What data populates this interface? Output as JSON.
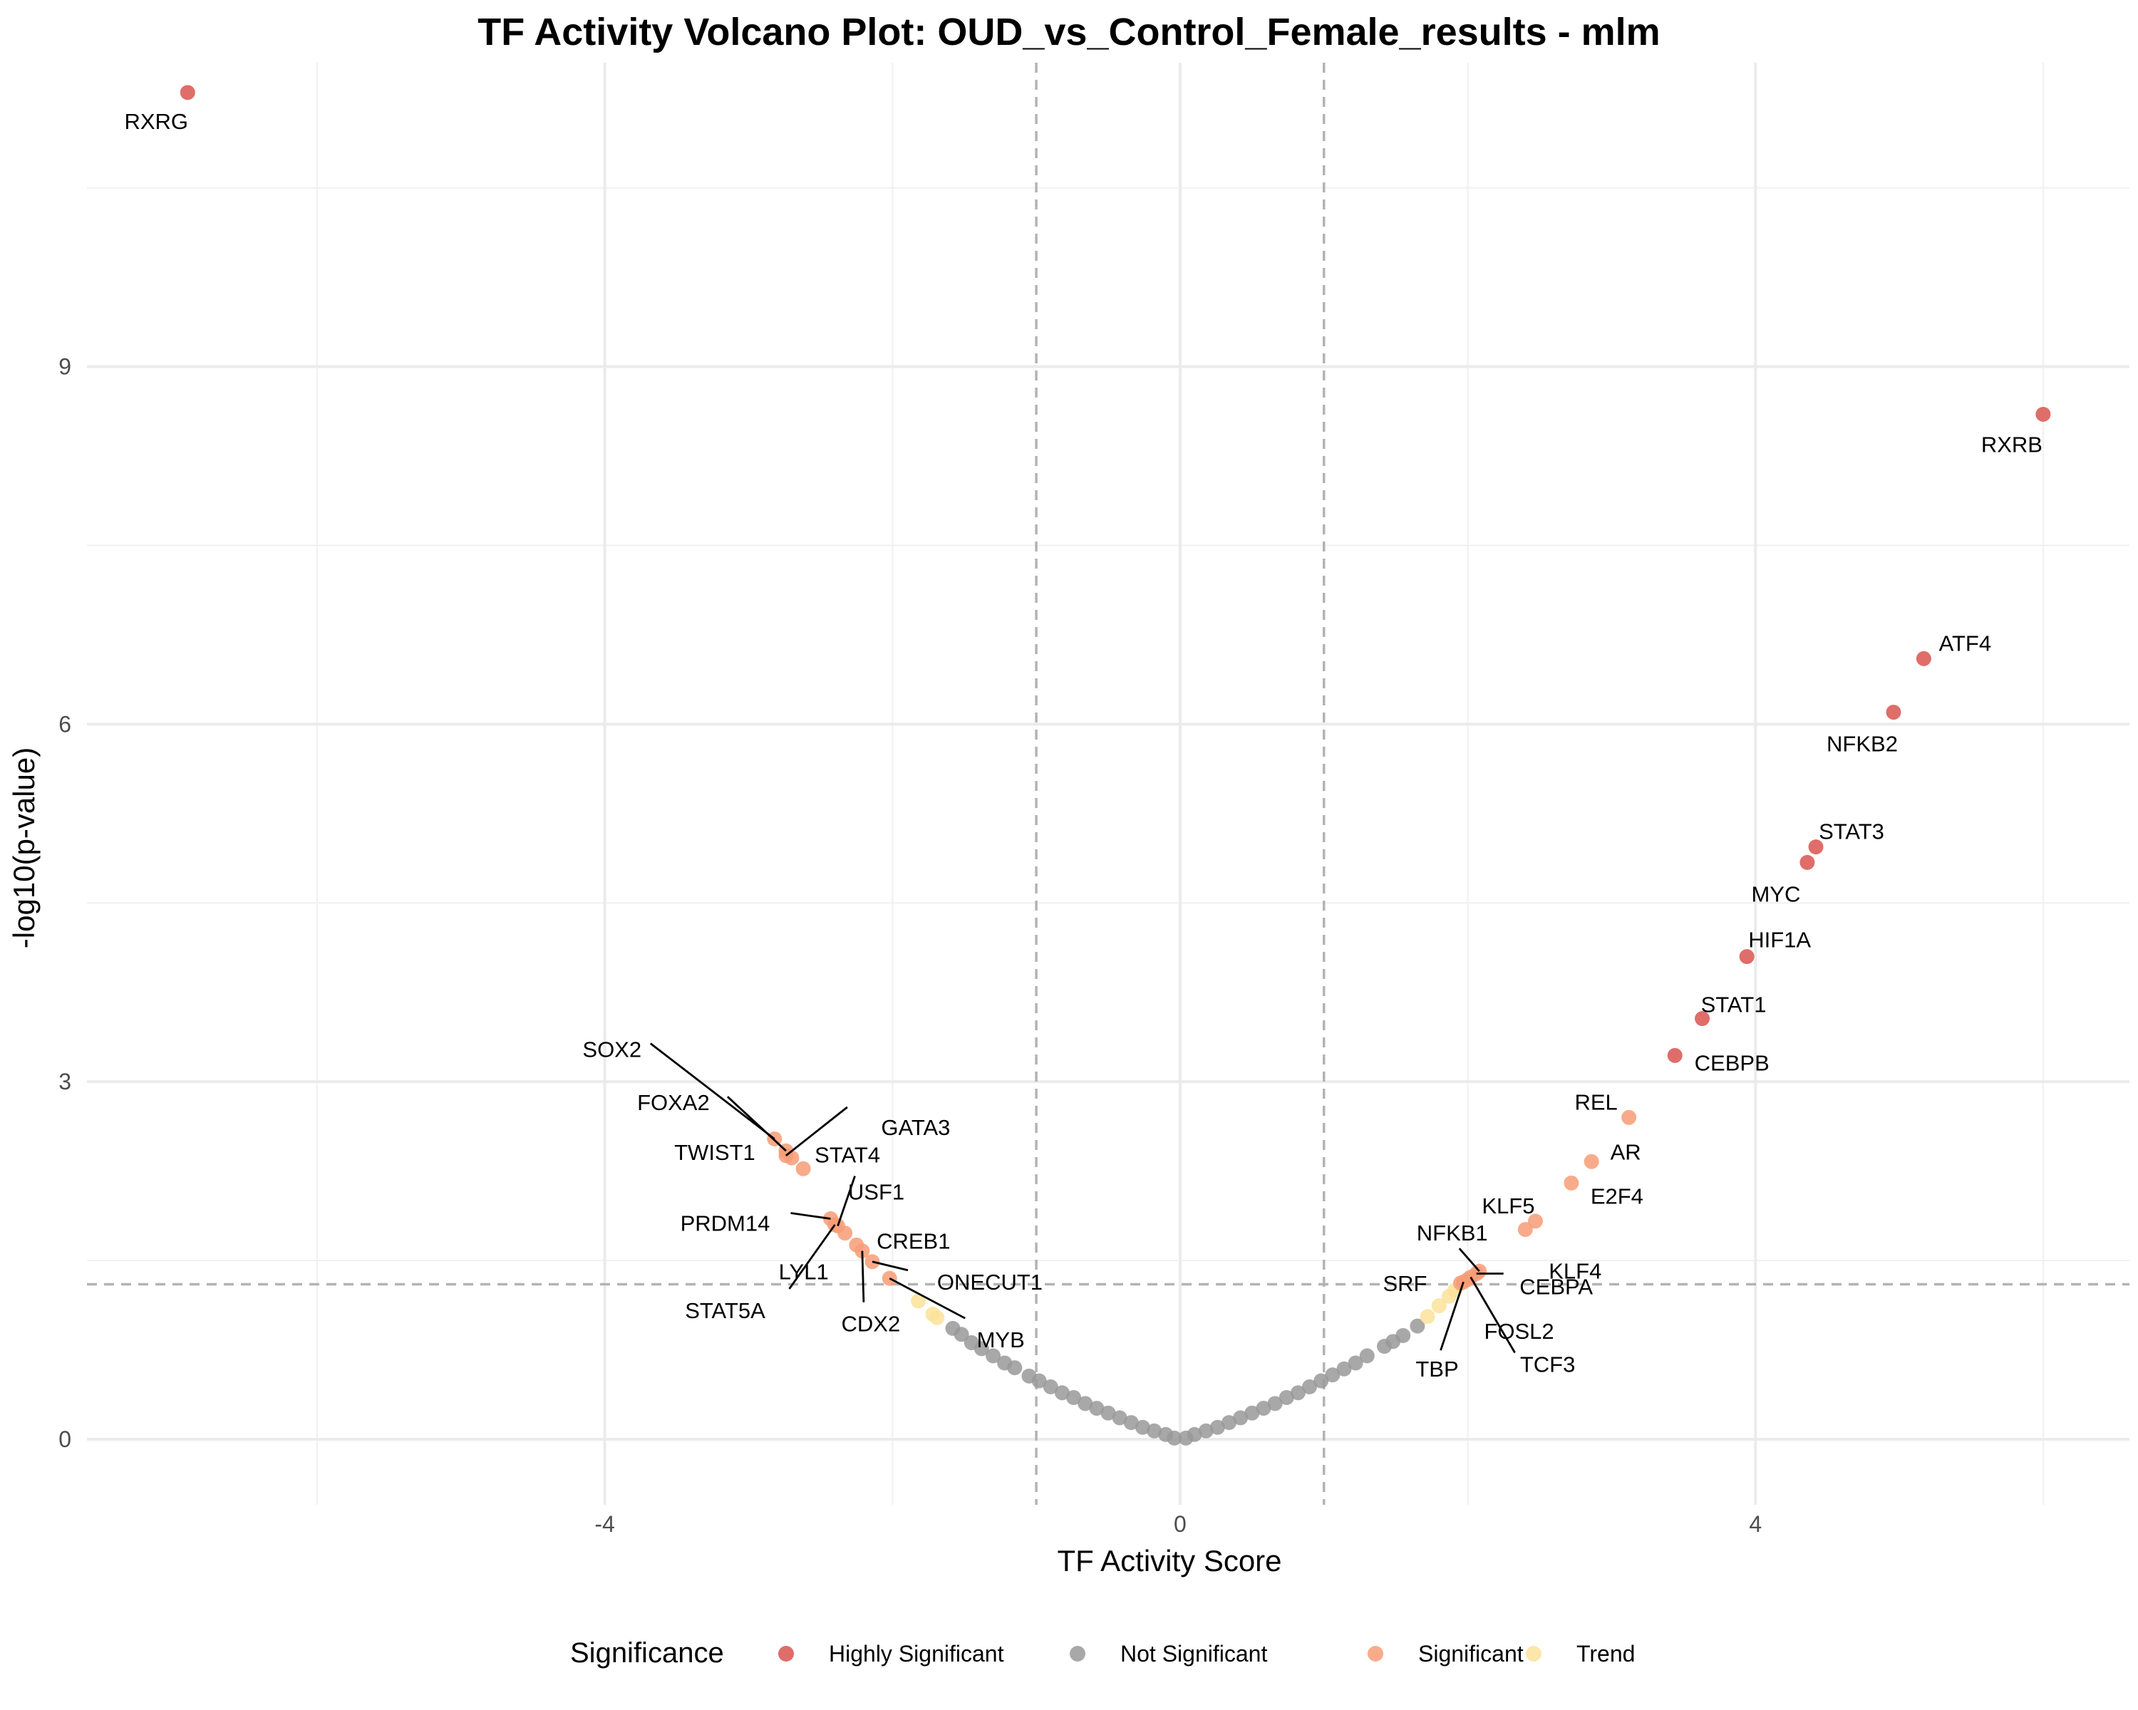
{
  "chart_data": {
    "type": "scatter",
    "title": "TF Activity Volcano Plot: OUD_vs_Control_Female_results - mlm",
    "xlabel": "TF Activity Score",
    "ylabel": "-log10(p-value)",
    "xlim": [
      -7.6,
      6.6
    ],
    "ylim": [
      -0.55,
      11.55
    ],
    "x_ticks": [
      -4,
      0,
      4
    ],
    "y_ticks": [
      0,
      3,
      6,
      9
    ],
    "x_minor_ticks": [
      -6,
      -2,
      2,
      6
    ],
    "y_minor_ticks": [
      1.5,
      4.5,
      7.5,
      10.5
    ],
    "grid": true,
    "thresholds": {
      "x": [
        -1,
        1
      ],
      "y": 1.3
    },
    "legend": {
      "title": "Significance",
      "position": "bottom",
      "entries": [
        {
          "name": "Highly Significant",
          "color": "#D9534F"
        },
        {
          "name": "Not Significant",
          "color": "#999999"
        },
        {
          "name": "Significant",
          "color": "#F79C76"
        },
        {
          "name": "Trend",
          "color": "#FBE29A"
        }
      ]
    },
    "colors": {
      "Highly Significant": "#D9534F",
      "Not Significant": "#999999",
      "Significant": "#F79C76",
      "Trend": "#FBE29A"
    },
    "labeled_points": [
      {
        "name": "RXRG",
        "x": -6.9,
        "y": 11.3,
        "group": "Highly Significant"
      },
      {
        "name": "RXRB",
        "x": 6.0,
        "y": 8.6,
        "group": "Highly Significant"
      },
      {
        "name": "ATF4",
        "x": 5.17,
        "y": 6.55,
        "group": "Highly Significant"
      },
      {
        "name": "NFKB2",
        "x": 4.96,
        "y": 6.1,
        "group": "Highly Significant"
      },
      {
        "name": "STAT3",
        "x": 4.42,
        "y": 4.97,
        "group": "Highly Significant"
      },
      {
        "name": "MYC",
        "x": 4.36,
        "y": 4.84,
        "group": "Highly Significant"
      },
      {
        "name": "HIF1A",
        "x": 3.94,
        "y": 4.05,
        "group": "Highly Significant"
      },
      {
        "name": "STAT1",
        "x": 3.63,
        "y": 3.53,
        "group": "Highly Significant"
      },
      {
        "name": "CEBPB",
        "x": 3.44,
        "y": 3.22,
        "group": "Highly Significant"
      },
      {
        "name": "REL",
        "x": 3.12,
        "y": 2.7,
        "group": "Significant"
      },
      {
        "name": "AR",
        "x": 2.86,
        "y": 2.33,
        "group": "Significant"
      },
      {
        "name": "E2F4",
        "x": 2.72,
        "y": 2.15,
        "group": "Significant"
      },
      {
        "name": "KLF5",
        "x": 2.47,
        "y": 1.83,
        "group": "Significant"
      },
      {
        "name": "KLF4",
        "x": 2.4,
        "y": 1.76,
        "group": "Significant"
      },
      {
        "name": "NFKB1",
        "x": 2.08,
        "y": 1.41,
        "group": "Significant"
      },
      {
        "name": "CEBPA",
        "x": 2.06,
        "y": 1.39,
        "group": "Significant"
      },
      {
        "name": "TCF3",
        "x": 2.02,
        "y": 1.36,
        "group": "Significant"
      },
      {
        "name": "FOSL2",
        "x": 2.0,
        "y": 1.34,
        "group": "Significant"
      },
      {
        "name": "TBP",
        "x": 1.97,
        "y": 1.32,
        "group": "Significant"
      },
      {
        "name": "SRF",
        "x": 1.95,
        "y": 1.31,
        "group": "Significant"
      },
      {
        "name": "SOX2",
        "x": -2.82,
        "y": 2.52,
        "group": "Significant"
      },
      {
        "name": "FOXA2",
        "x": -2.74,
        "y": 2.42,
        "group": "Significant"
      },
      {
        "name": "TWIST1",
        "x": -2.7,
        "y": 2.36,
        "group": "Significant"
      },
      {
        "name": "STAT4",
        "x": -2.62,
        "y": 2.27,
        "group": "Significant"
      },
      {
        "name": "GATA3",
        "x": -2.74,
        "y": 2.38,
        "group": "Significant"
      },
      {
        "name": "PRDM14",
        "x": -2.43,
        "y": 1.85,
        "group": "Significant"
      },
      {
        "name": "USF1",
        "x": -2.38,
        "y": 1.79,
        "group": "Significant"
      },
      {
        "name": "LYL1",
        "x": -2.33,
        "y": 1.73,
        "group": "Significant"
      },
      {
        "name": "STAT5A",
        "x": -2.4,
        "y": 1.8,
        "group": "Significant"
      },
      {
        "name": "CREB1",
        "x": -2.25,
        "y": 1.63,
        "group": "Significant"
      },
      {
        "name": "CDX2",
        "x": -2.21,
        "y": 1.58,
        "group": "Significant"
      },
      {
        "name": "ONECUT1",
        "x": -2.14,
        "y": 1.49,
        "group": "Significant"
      },
      {
        "name": "MYB",
        "x": -2.02,
        "y": 1.35,
        "group": "Significant"
      }
    ],
    "unlabeled_points": [
      {
        "x": -1.82,
        "y": 1.16,
        "group": "Trend"
      },
      {
        "x": -1.72,
        "y": 1.05,
        "group": "Trend"
      },
      {
        "x": -1.69,
        "y": 1.02,
        "group": "Trend"
      },
      {
        "x": -1.58,
        "y": 0.93,
        "group": "Not Significant"
      },
      {
        "x": -1.52,
        "y": 0.88,
        "group": "Not Significant"
      },
      {
        "x": -1.45,
        "y": 0.81,
        "group": "Not Significant"
      },
      {
        "x": -1.38,
        "y": 0.76,
        "group": "Not Significant"
      },
      {
        "x": -1.3,
        "y": 0.7,
        "group": "Not Significant"
      },
      {
        "x": -1.22,
        "y": 0.64,
        "group": "Not Significant"
      },
      {
        "x": -1.15,
        "y": 0.6,
        "group": "Not Significant"
      },
      {
        "x": -1.05,
        "y": 0.53,
        "group": "Not Significant"
      },
      {
        "x": -0.98,
        "y": 0.49,
        "group": "Not Significant"
      },
      {
        "x": -0.9,
        "y": 0.44,
        "group": "Not Significant"
      },
      {
        "x": -0.82,
        "y": 0.39,
        "group": "Not Significant"
      },
      {
        "x": -0.74,
        "y": 0.35,
        "group": "Not Significant"
      },
      {
        "x": -0.66,
        "y": 0.3,
        "group": "Not Significant"
      },
      {
        "x": -0.58,
        "y": 0.26,
        "group": "Not Significant"
      },
      {
        "x": -0.5,
        "y": 0.22,
        "group": "Not Significant"
      },
      {
        "x": -0.42,
        "y": 0.18,
        "group": "Not Significant"
      },
      {
        "x": -0.34,
        "y": 0.14,
        "group": "Not Significant"
      },
      {
        "x": -0.26,
        "y": 0.1,
        "group": "Not Significant"
      },
      {
        "x": -0.18,
        "y": 0.07,
        "group": "Not Significant"
      },
      {
        "x": -0.1,
        "y": 0.04,
        "group": "Not Significant"
      },
      {
        "x": -0.04,
        "y": 0.01,
        "group": "Not Significant"
      },
      {
        "x": 0.04,
        "y": 0.01,
        "group": "Not Significant"
      },
      {
        "x": 0.1,
        "y": 0.04,
        "group": "Not Significant"
      },
      {
        "x": 0.18,
        "y": 0.07,
        "group": "Not Significant"
      },
      {
        "x": 0.26,
        "y": 0.1,
        "group": "Not Significant"
      },
      {
        "x": 0.34,
        "y": 0.14,
        "group": "Not Significant"
      },
      {
        "x": 0.42,
        "y": 0.18,
        "group": "Not Significant"
      },
      {
        "x": 0.5,
        "y": 0.22,
        "group": "Not Significant"
      },
      {
        "x": 0.58,
        "y": 0.26,
        "group": "Not Significant"
      },
      {
        "x": 0.66,
        "y": 0.3,
        "group": "Not Significant"
      },
      {
        "x": 0.74,
        "y": 0.35,
        "group": "Not Significant"
      },
      {
        "x": 0.82,
        "y": 0.39,
        "group": "Not Significant"
      },
      {
        "x": 0.9,
        "y": 0.44,
        "group": "Not Significant"
      },
      {
        "x": 0.98,
        "y": 0.49,
        "group": "Not Significant"
      },
      {
        "x": 1.06,
        "y": 0.54,
        "group": "Not Significant"
      },
      {
        "x": 1.14,
        "y": 0.59,
        "group": "Not Significant"
      },
      {
        "x": 1.22,
        "y": 0.64,
        "group": "Not Significant"
      },
      {
        "x": 1.3,
        "y": 0.7,
        "group": "Not Significant"
      },
      {
        "x": 1.42,
        "y": 0.78,
        "group": "Not Significant"
      },
      {
        "x": 1.48,
        "y": 0.82,
        "group": "Not Significant"
      },
      {
        "x": 1.55,
        "y": 0.87,
        "group": "Not Significant"
      },
      {
        "x": 1.65,
        "y": 0.95,
        "group": "Not Significant"
      },
      {
        "x": 1.72,
        "y": 1.03,
        "group": "Trend"
      },
      {
        "x": 1.8,
        "y": 1.12,
        "group": "Trend"
      },
      {
        "x": 1.87,
        "y": 1.2,
        "group": "Trend"
      },
      {
        "x": 1.91,
        "y": 1.25,
        "group": "Trend"
      }
    ]
  }
}
